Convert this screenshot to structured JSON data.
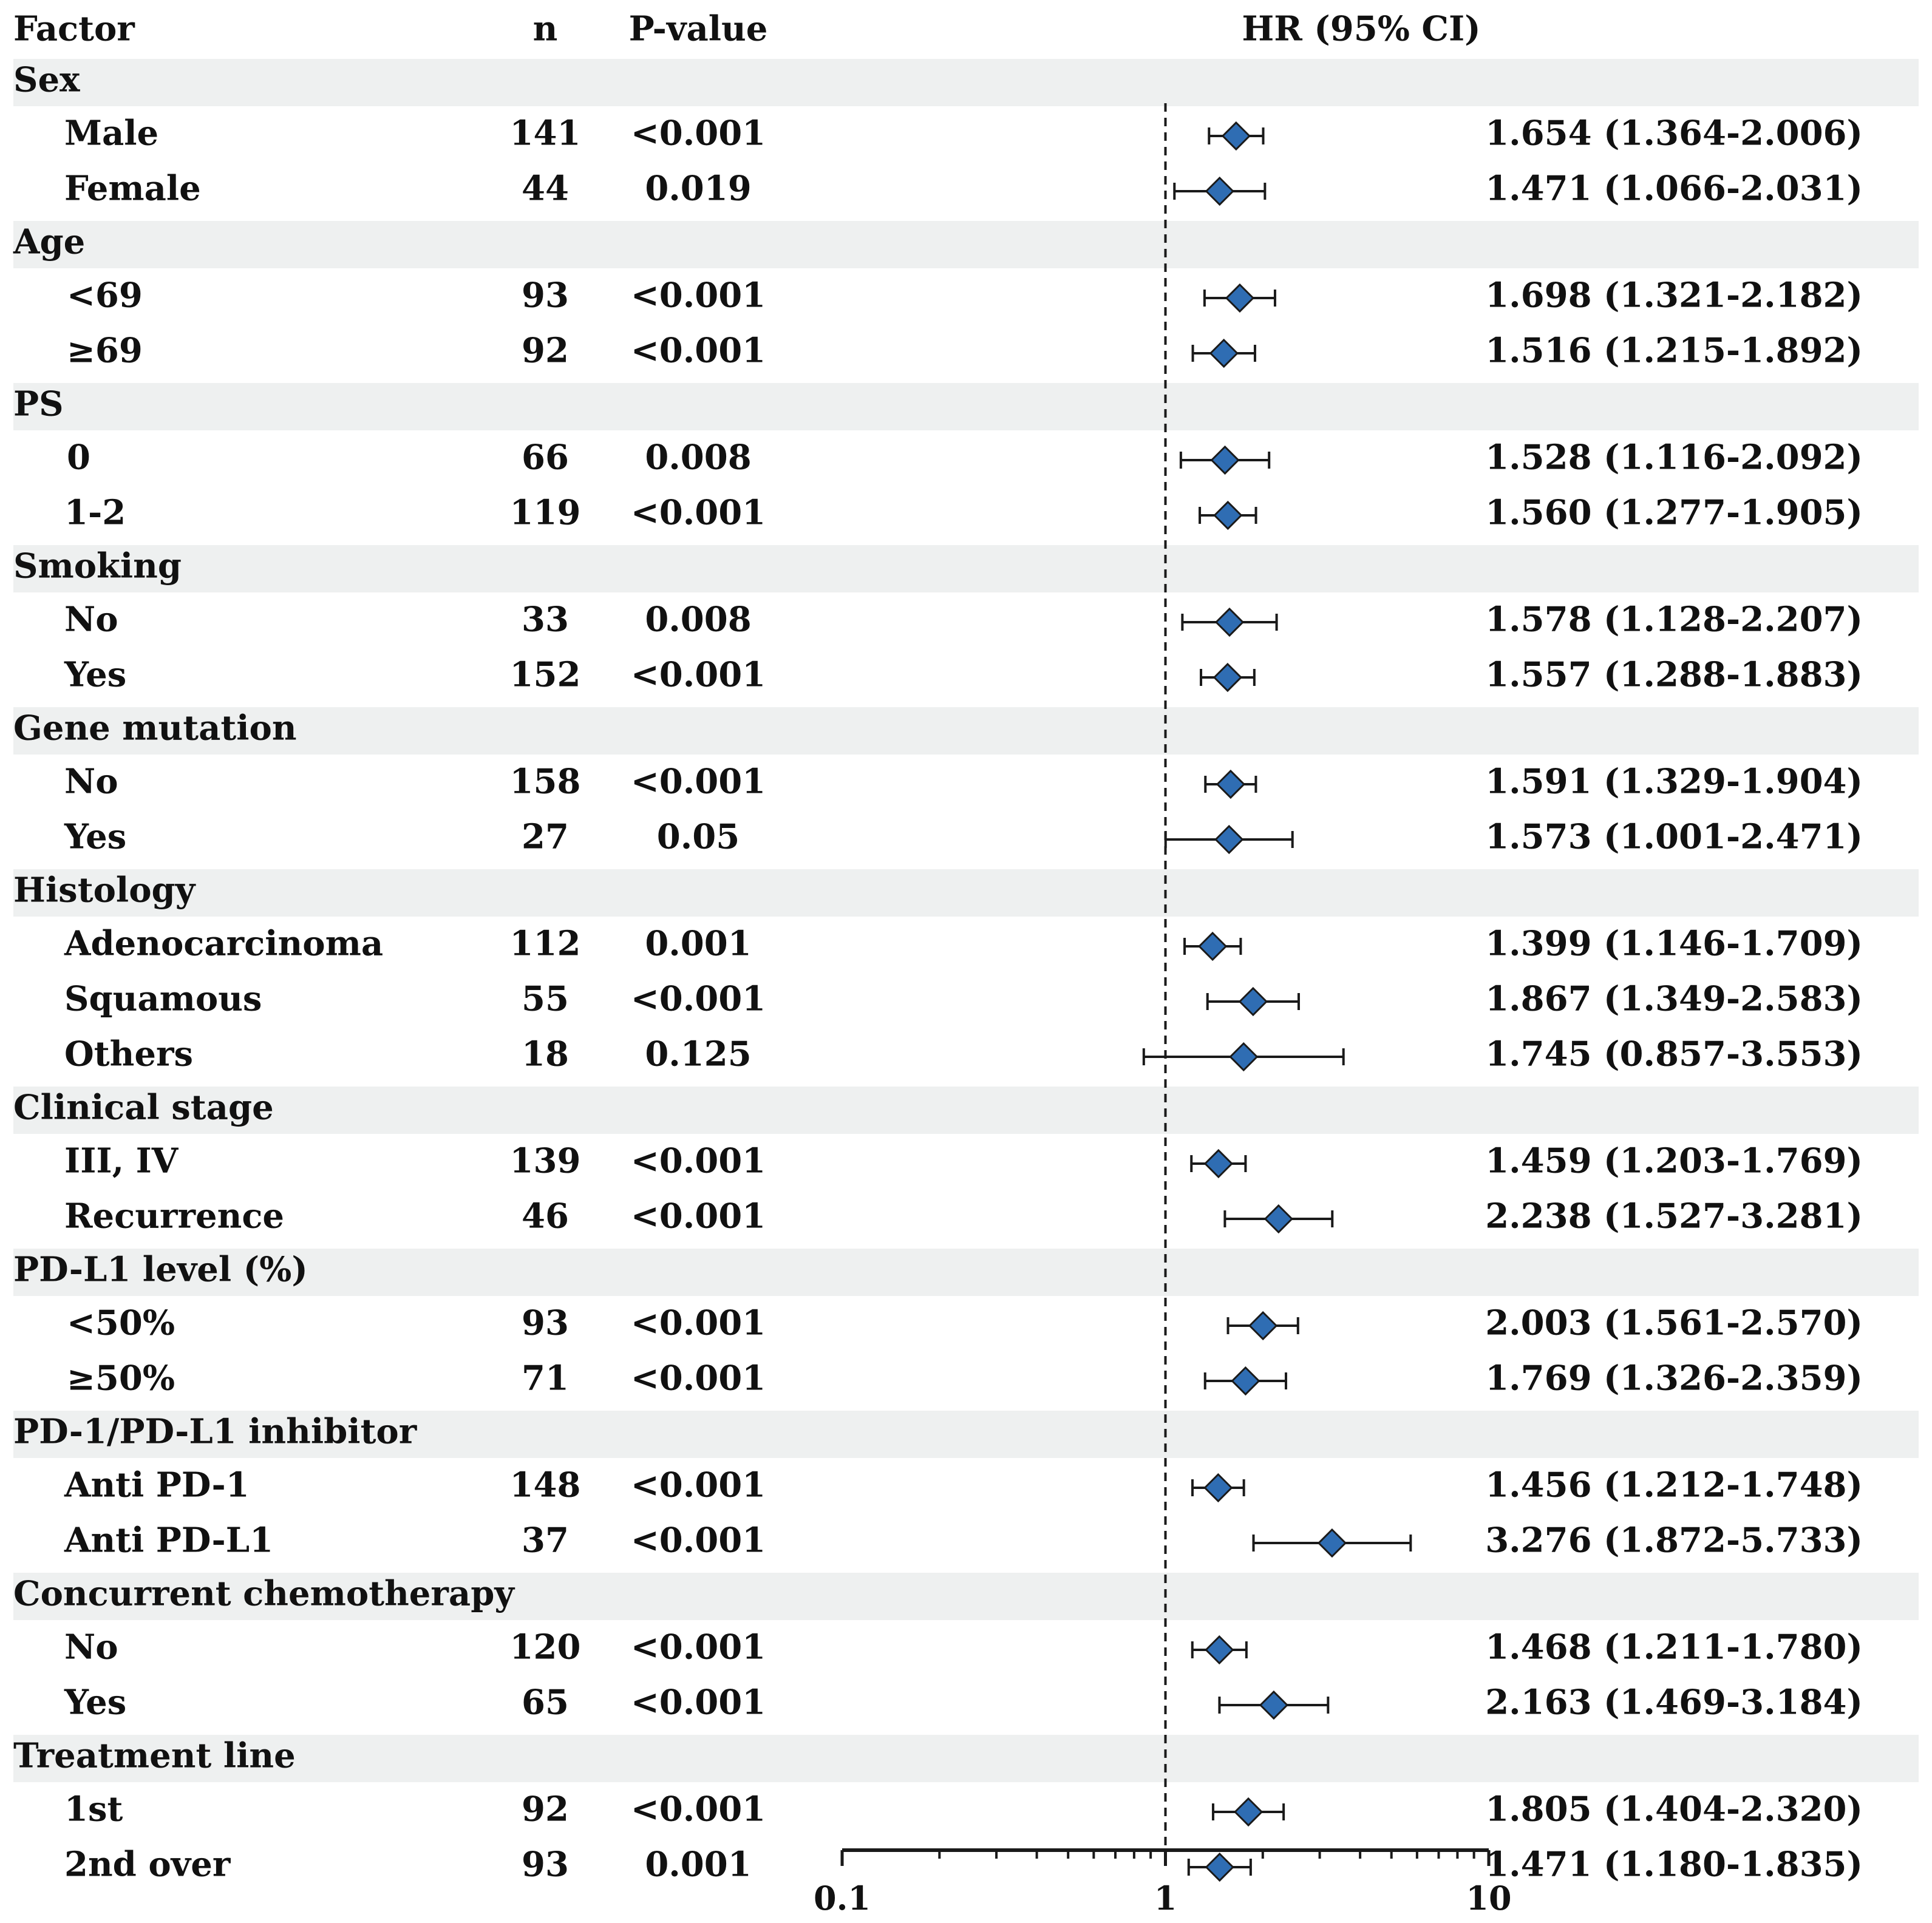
{
  "chart_data": {
    "type": "forest",
    "title": "",
    "columns": {
      "factor": "Factor",
      "n": "n",
      "p": "P-value",
      "hr": "HR (95% CI)"
    },
    "x_scale": "log10",
    "xlim": [
      0.1,
      10
    ],
    "x_ticks": [
      {
        "value": 0.1,
        "label": "0.1"
      },
      {
        "value": 1,
        "label": "1"
      },
      {
        "value": 10,
        "label": "10"
      }
    ],
    "reference_line": 1,
    "colors": {
      "marker_fill": "#2f6db3",
      "marker_stroke": "#1a1a1a",
      "band": "#eef0f0",
      "text": "#111111"
    },
    "groups": [
      {
        "label": "Sex",
        "rows": [
          {
            "label": "Male",
            "n": "141",
            "p": "<0.001",
            "hr": 1.654,
            "lo": 1.364,
            "hi": 2.006,
            "text": "1.654 (1.364-2.006)"
          },
          {
            "label": "Female",
            "n": "44",
            "p": "0.019",
            "hr": 1.471,
            "lo": 1.066,
            "hi": 2.031,
            "text": "1.471 (1.066-2.031)"
          }
        ]
      },
      {
        "label": "Age",
        "rows": [
          {
            "label": "<69",
            "n": "93",
            "p": "<0.001",
            "hr": 1.698,
            "lo": 1.321,
            "hi": 2.182,
            "text": "1.698 (1.321-2.182)"
          },
          {
            "label": "≥69",
            "n": "92",
            "p": "<0.001",
            "hr": 1.516,
            "lo": 1.215,
            "hi": 1.892,
            "text": "1.516 (1.215-1.892)"
          }
        ]
      },
      {
        "label": "PS",
        "rows": [
          {
            "label": "0",
            "n": "66",
            "p": "0.008",
            "hr": 1.528,
            "lo": 1.116,
            "hi": 2.092,
            "text": "1.528 (1.116-2.092)"
          },
          {
            "label": "1-2",
            "n": "119",
            "p": "<0.001",
            "hr": 1.56,
            "lo": 1.277,
            "hi": 1.905,
            "text": "1.560 (1.277-1.905)"
          }
        ]
      },
      {
        "label": "Smoking",
        "rows": [
          {
            "label": "No",
            "n": "33",
            "p": "0.008",
            "hr": 1.578,
            "lo": 1.128,
            "hi": 2.207,
            "text": "1.578 (1.128-2.207)"
          },
          {
            "label": "Yes",
            "n": "152",
            "p": "<0.001",
            "hr": 1.557,
            "lo": 1.288,
            "hi": 1.883,
            "text": "1.557 (1.288-1.883)"
          }
        ]
      },
      {
        "label": "Gene mutation",
        "rows": [
          {
            "label": "No",
            "n": "158",
            "p": "<0.001",
            "hr": 1.591,
            "lo": 1.329,
            "hi": 1.904,
            "text": "1.591 (1.329-1.904)"
          },
          {
            "label": "Yes",
            "n": "27",
            "p": "0.05",
            "hr": 1.573,
            "lo": 1.001,
            "hi": 2.471,
            "text": "1.573 (1.001-2.471)"
          }
        ]
      },
      {
        "label": "Histology",
        "rows": [
          {
            "label": "Adenocarcinoma",
            "n": "112",
            "p": "0.001",
            "hr": 1.399,
            "lo": 1.146,
            "hi": 1.709,
            "text": "1.399 (1.146-1.709)"
          },
          {
            "label": "Squamous",
            "n": "55",
            "p": "<0.001",
            "hr": 1.867,
            "lo": 1.349,
            "hi": 2.583,
            "text": "1.867 (1.349-2.583)"
          },
          {
            "label": "Others",
            "n": "18",
            "p": "0.125",
            "hr": 1.745,
            "lo": 0.857,
            "hi": 3.553,
            "text": "1.745 (0.857-3.553)"
          }
        ]
      },
      {
        "label": "Clinical stage",
        "rows": [
          {
            "label": "III, IV",
            "n": "139",
            "p": "<0.001",
            "hr": 1.459,
            "lo": 1.203,
            "hi": 1.769,
            "text": "1.459 (1.203-1.769)"
          },
          {
            "label": "Recurrence",
            "n": "46",
            "p": "<0.001",
            "hr": 2.238,
            "lo": 1.527,
            "hi": 3.281,
            "text": "2.238 (1.527-3.281)"
          }
        ]
      },
      {
        "label": "PD-L1 level (%)",
        "rows": [
          {
            "label": "<50%",
            "n": "93",
            "p": "<0.001",
            "hr": 2.003,
            "lo": 1.561,
            "hi": 2.57,
            "text": "2.003 (1.561-2.570)"
          },
          {
            "label": "≥50%",
            "n": "71",
            "p": "<0.001",
            "hr": 1.769,
            "lo": 1.326,
            "hi": 2.359,
            "text": "1.769 (1.326-2.359)"
          }
        ]
      },
      {
        "label": "PD-1/PD-L1 inhibitor",
        "rows": [
          {
            "label": "Anti PD-1",
            "n": "148",
            "p": "<0.001",
            "hr": 1.456,
            "lo": 1.212,
            "hi": 1.748,
            "text": "1.456 (1.212-1.748)"
          },
          {
            "label": "Anti PD-L1",
            "n": "37",
            "p": "<0.001",
            "hr": 3.276,
            "lo": 1.872,
            "hi": 5.733,
            "text": "3.276 (1.872-5.733)"
          }
        ]
      },
      {
        "label": "Concurrent chemotherapy",
        "rows": [
          {
            "label": "No",
            "n": "120",
            "p": "<0.001",
            "hr": 1.468,
            "lo": 1.211,
            "hi": 1.78,
            "text": "1.468 (1.211-1.780)"
          },
          {
            "label": "Yes",
            "n": "65",
            "p": "<0.001",
            "hr": 2.163,
            "lo": 1.469,
            "hi": 3.184,
            "text": "2.163 (1.469-3.184)"
          }
        ]
      },
      {
        "label": "Treatment line",
        "rows": [
          {
            "label": "1st",
            "n": "92",
            "p": "<0.001",
            "hr": 1.805,
            "lo": 1.404,
            "hi": 2.32,
            "text": "1.805 (1.404-2.320)"
          },
          {
            "label": "2nd over",
            "n": "93",
            "p": "0.001",
            "hr": 1.471,
            "lo": 1.18,
            "hi": 1.835,
            "text": "1.471 (1.180-1.835)"
          }
        ]
      }
    ]
  }
}
